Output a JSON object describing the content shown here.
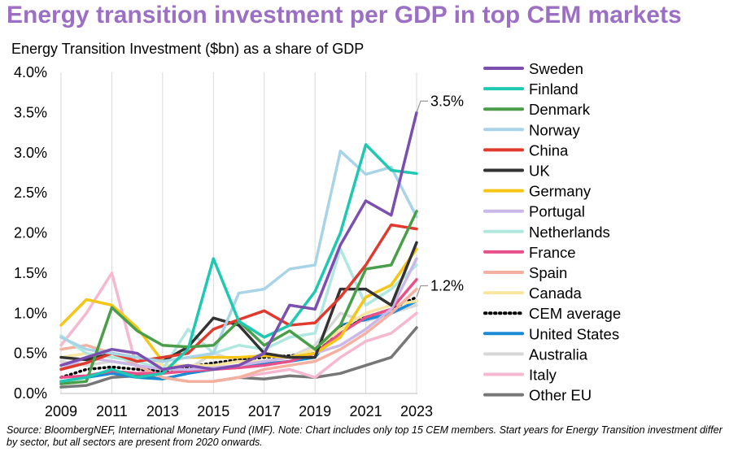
{
  "title": "Energy transition investment per GDP in top CEM markets",
  "source": "Source: BloombergNEF, International Monetary Fund (IMF). Note: Chart includes only top 15 CEM members. Start years for Energy Transition investment differ by sector, but all sectors are present from 2020 onwards.",
  "chart_data": {
    "type": "line",
    "title": "Energy Transition Investment ($bn) as a share of GDP",
    "xlabel": "",
    "ylabel": "",
    "x": [
      2009,
      2010,
      2011,
      2012,
      2013,
      2014,
      2015,
      2016,
      2017,
      2018,
      2019,
      2020,
      2021,
      2022,
      2023
    ],
    "x_ticks": [
      "2009",
      "2011",
      "2013",
      "2015",
      "2017",
      "2019",
      "2021",
      "2023"
    ],
    "y_ticks": [
      "0.0%",
      "0.5%",
      "1.0%",
      "1.5%",
      "2.0%",
      "2.5%",
      "3.0%",
      "3.5%",
      "4.0%"
    ],
    "ylim": [
      0,
      4.0
    ],
    "grid": "vertical",
    "legend_position": "right",
    "annotations": [
      {
        "label": "3.5%",
        "series": "Sweden",
        "x": 2023,
        "y": 3.5
      },
      {
        "label": "1.2%",
        "series": "CEM average",
        "x": 2023,
        "y": 1.2
      }
    ],
    "series": [
      {
        "name": "Sweden",
        "color": "#7b4fb0",
        "style": "solid",
        "values": [
          0.35,
          0.45,
          0.55,
          0.5,
          0.3,
          0.35,
          0.3,
          0.35,
          0.5,
          1.1,
          1.05,
          1.85,
          2.4,
          2.22,
          3.5
        ]
      },
      {
        "name": "Finland",
        "color": "#1fc8b0",
        "style": "solid",
        "values": [
          0.15,
          0.2,
          0.3,
          0.2,
          0.25,
          0.55,
          1.68,
          0.9,
          0.7,
          0.85,
          1.27,
          2.0,
          3.1,
          2.78,
          2.74
        ]
      },
      {
        "name": "Denmark",
        "color": "#4a9e4a",
        "style": "solid",
        "values": [
          0.12,
          0.15,
          1.07,
          0.78,
          0.6,
          0.58,
          0.6,
          0.9,
          0.6,
          0.78,
          0.55,
          0.85,
          1.55,
          1.6,
          2.27
        ]
      },
      {
        "name": "Norway",
        "color": "#a8d4e8",
        "style": "solid",
        "values": [
          0.7,
          0.55,
          0.5,
          0.45,
          0.4,
          0.45,
          0.5,
          1.25,
          1.3,
          1.55,
          1.6,
          3.02,
          2.73,
          2.82,
          2.2
        ]
      },
      {
        "name": "China",
        "color": "#e03a2e",
        "style": "solid",
        "values": [
          0.3,
          0.38,
          0.5,
          0.4,
          0.45,
          0.5,
          0.8,
          0.92,
          1.03,
          0.85,
          0.88,
          1.2,
          1.6,
          2.1,
          2.05
        ]
      },
      {
        "name": "UK",
        "color": "#333333",
        "style": "solid",
        "values": [
          0.45,
          0.42,
          0.5,
          0.45,
          0.4,
          0.58,
          0.94,
          0.85,
          0.5,
          0.45,
          0.45,
          1.3,
          1.3,
          1.1,
          1.88
        ]
      },
      {
        "name": "Germany",
        "color": "#f5c518",
        "style": "solid",
        "values": [
          0.85,
          1.17,
          1.1,
          0.82,
          0.4,
          0.45,
          0.45,
          0.45,
          0.47,
          0.45,
          0.5,
          0.7,
          1.2,
          1.35,
          1.8
        ]
      },
      {
        "name": "Portugal",
        "color": "#c9b8e8",
        "style": "solid",
        "values": [
          0.3,
          0.45,
          0.4,
          0.35,
          0.3,
          0.3,
          0.32,
          0.35,
          0.4,
          0.45,
          0.5,
          0.6,
          0.8,
          1.05,
          1.68
        ]
      },
      {
        "name": "Netherlands",
        "color": "#b0e8e0",
        "style": "solid",
        "values": [
          0.72,
          0.5,
          0.45,
          0.4,
          0.3,
          0.8,
          0.5,
          0.6,
          0.55,
          0.7,
          0.75,
          1.8,
          1.1,
          1.3,
          1.6
        ]
      },
      {
        "name": "France",
        "color": "#e8508a",
        "style": "solid",
        "values": [
          0.2,
          0.22,
          0.28,
          0.25,
          0.25,
          0.28,
          0.3,
          0.32,
          0.35,
          0.4,
          0.5,
          0.75,
          0.95,
          1.05,
          1.42
        ]
      },
      {
        "name": "Spain",
        "color": "#f5b0a0",
        "style": "solid",
        "values": [
          0.55,
          0.6,
          0.5,
          0.35,
          0.2,
          0.15,
          0.15,
          0.2,
          0.3,
          0.35,
          0.4,
          0.55,
          0.75,
          1.0,
          1.3
        ]
      },
      {
        "name": "Canada",
        "color": "#f8e6a0",
        "style": "solid",
        "values": [
          0.45,
          0.5,
          0.45,
          0.45,
          0.35,
          0.35,
          0.35,
          0.4,
          0.4,
          0.45,
          0.55,
          0.8,
          1.0,
          1.1,
          1.15
        ]
      },
      {
        "name": "CEM average",
        "color": "#000000",
        "style": "dotted",
        "values": [
          0.2,
          0.3,
          0.33,
          0.3,
          0.28,
          0.33,
          0.38,
          0.42,
          0.45,
          0.47,
          0.5,
          0.82,
          0.95,
          1.05,
          1.2
        ]
      },
      {
        "name": "United States",
        "color": "#1a8ad4",
        "style": "solid",
        "values": [
          0.15,
          0.2,
          0.25,
          0.2,
          0.18,
          0.25,
          0.3,
          0.33,
          0.37,
          0.4,
          0.45,
          0.85,
          0.92,
          1.0,
          1.15
        ]
      },
      {
        "name": "Australia",
        "color": "#d8d8d8",
        "style": "solid",
        "values": [
          0.4,
          0.35,
          0.4,
          0.35,
          0.25,
          0.3,
          0.5,
          0.4,
          0.5,
          0.45,
          0.6,
          1.0,
          0.9,
          1.0,
          1.1
        ]
      },
      {
        "name": "Italy",
        "color": "#f5b8d0",
        "style": "solid",
        "values": [
          0.6,
          1.0,
          1.5,
          0.3,
          0.2,
          0.15,
          0.15,
          0.2,
          0.25,
          0.3,
          0.2,
          0.45,
          0.65,
          0.75,
          1.0
        ]
      },
      {
        "name": "Other EU",
        "color": "#777777",
        "style": "solid",
        "values": [
          0.08,
          0.1,
          0.2,
          0.22,
          0.2,
          0.15,
          0.15,
          0.2,
          0.18,
          0.22,
          0.2,
          0.25,
          0.35,
          0.45,
          0.82
        ]
      }
    ]
  }
}
